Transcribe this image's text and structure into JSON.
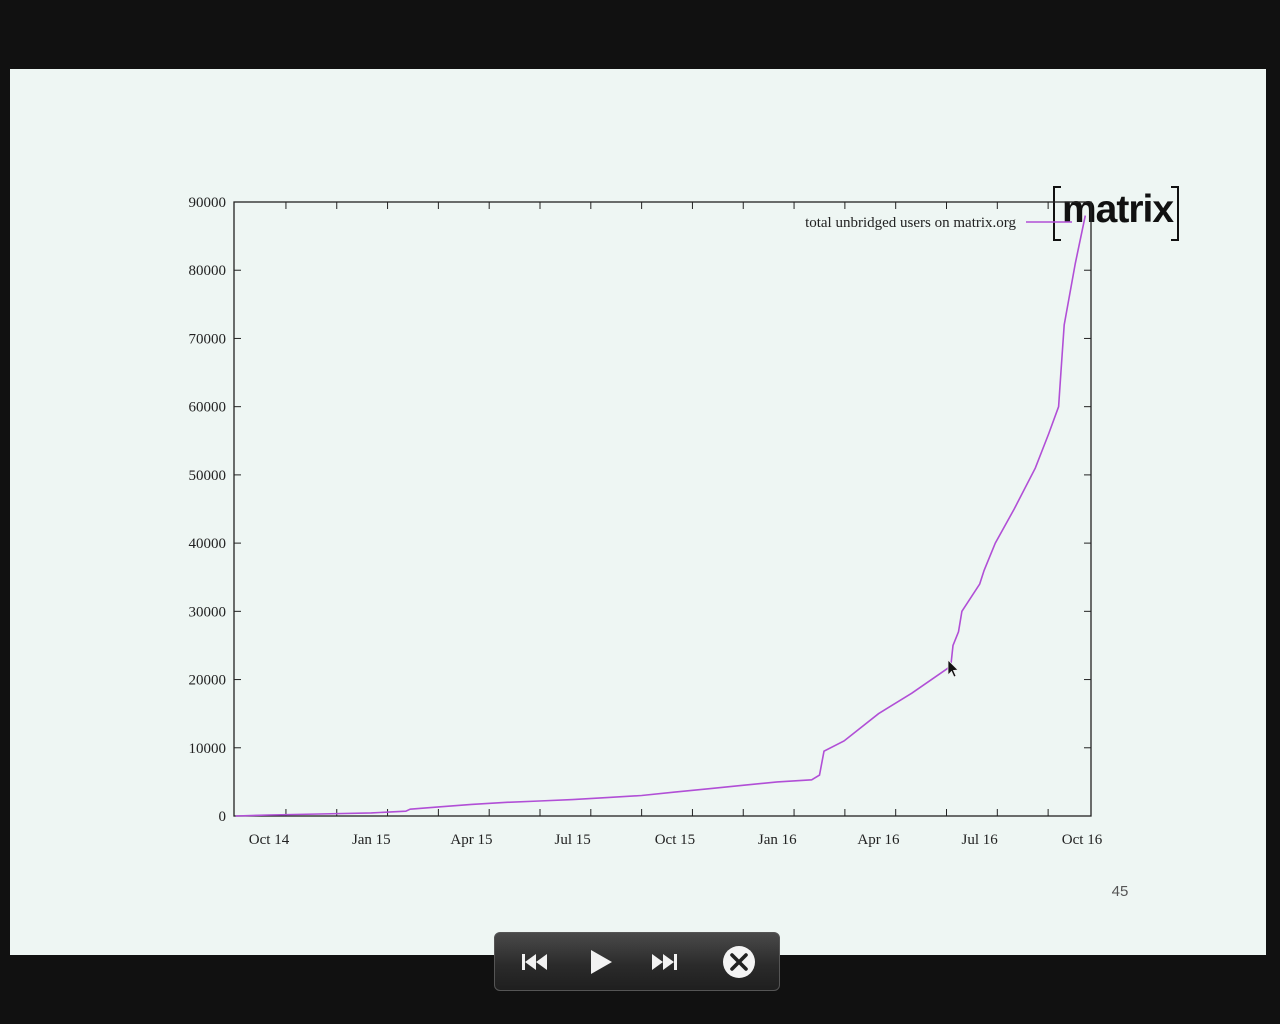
{
  "slide": {
    "logo_text": "matrix",
    "page_number": "45"
  },
  "chart_data": {
    "type": "line",
    "title": "",
    "xlabel": "",
    "ylabel": "",
    "ylim": [
      0,
      90000
    ],
    "y_ticks": [
      "0",
      "10000",
      "20000",
      "30000",
      "40000",
      "50000",
      "60000",
      "70000",
      "80000",
      "90000"
    ],
    "x_ticks": [
      "Oct 14",
      "Jan 15",
      "Apr 15",
      "Jul 15",
      "Oct 15",
      "Jan 16",
      "Apr 16",
      "Jul 16",
      "Oct 16"
    ],
    "x_range": [
      "2014-09",
      "2016-10"
    ],
    "legend_position": "top-right",
    "series": [
      {
        "name": "total unbridged users on matrix.org",
        "color": "#b14fd6",
        "points": [
          [
            "2014-09-01",
            0
          ],
          [
            "2014-10-01",
            150
          ],
          [
            "2014-11-15",
            300
          ],
          [
            "2015-01-01",
            450
          ],
          [
            "2015-02-01",
            700
          ],
          [
            "2015-02-05",
            1000
          ],
          [
            "2015-03-01",
            1300
          ],
          [
            "2015-04-01",
            1700
          ],
          [
            "2015-05-01",
            2000
          ],
          [
            "2015-06-01",
            2200
          ],
          [
            "2015-07-01",
            2400
          ],
          [
            "2015-08-01",
            2700
          ],
          [
            "2015-09-01",
            3000
          ],
          [
            "2015-10-01",
            3500
          ],
          [
            "2015-11-01",
            4000
          ],
          [
            "2015-12-01",
            4500
          ],
          [
            "2016-01-01",
            5000
          ],
          [
            "2016-02-01",
            5300
          ],
          [
            "2016-02-08",
            6000
          ],
          [
            "2016-02-12",
            9500
          ],
          [
            "2016-03-01",
            11000
          ],
          [
            "2016-04-01",
            15000
          ],
          [
            "2016-05-01",
            18000
          ],
          [
            "2016-06-01",
            21500
          ],
          [
            "2016-06-05",
            22000
          ],
          [
            "2016-06-07",
            25000
          ],
          [
            "2016-06-12",
            27000
          ],
          [
            "2016-06-15",
            30000
          ],
          [
            "2016-07-01",
            34000
          ],
          [
            "2016-07-05",
            36000
          ],
          [
            "2016-07-15",
            40000
          ],
          [
            "2016-08-01",
            45000
          ],
          [
            "2016-08-20",
            51000
          ],
          [
            "2016-09-01",
            56000
          ],
          [
            "2016-09-10",
            60000
          ],
          [
            "2016-09-12",
            65000
          ],
          [
            "2016-09-15",
            72000
          ],
          [
            "2016-09-25",
            81000
          ],
          [
            "2016-10-04",
            88000
          ]
        ]
      }
    ]
  },
  "player": {
    "prev_icon": "skip-back-icon",
    "play_icon": "play-icon",
    "next_icon": "skip-forward-icon",
    "close_icon": "close-icon"
  }
}
